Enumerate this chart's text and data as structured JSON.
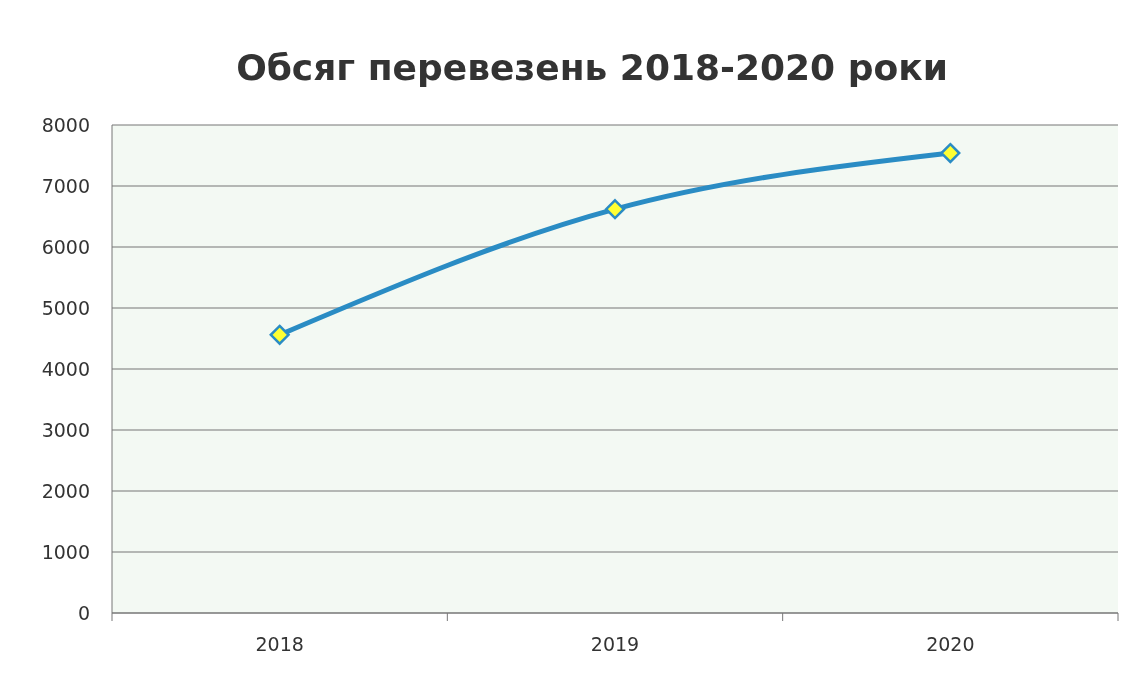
{
  "chart_data": {
    "type": "line",
    "title": "Обсяг перевезень 2018-2020 роки",
    "categories": [
      "2018",
      "2019",
      "2020"
    ],
    "series": [
      {
        "color": "#2a8cc4",
        "values": [
          4560,
          6620,
          7540
        ]
      }
    ],
    "ylim": [
      0,
      8000
    ],
    "yticks": [
      0,
      1000,
      2000,
      3000,
      4000,
      5000,
      6000,
      7000,
      8000
    ],
    "grid": "y",
    "marker": "diamond"
  }
}
